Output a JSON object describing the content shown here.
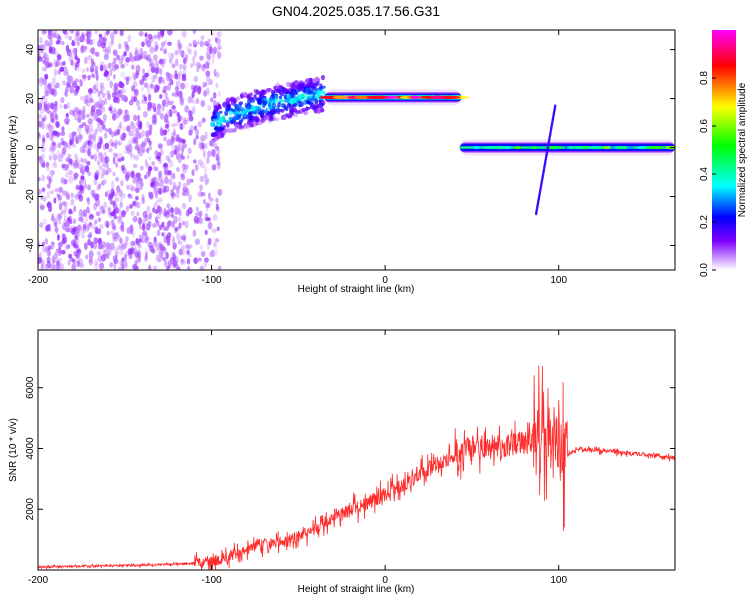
{
  "figure_title": "GN04.2025.035.17.56.G31",
  "chart_data": [
    {
      "type": "heatmap",
      "xlabel": "Height of straight line (km)",
      "ylabel": "Frequency (Hz)",
      "xlim": [
        -200,
        167
      ],
      "ylim": [
        -50,
        48
      ],
      "x_ticks": [
        -200,
        -100,
        0,
        100
      ],
      "y_ticks": [
        -40,
        -20,
        0,
        20,
        40
      ],
      "colorbar": {
        "label": "Normalized spectral amplitude",
        "range": [
          0,
          1
        ],
        "ticks": [
          0.0,
          0.2,
          0.4,
          0.6,
          0.8
        ],
        "colormap": [
          "#ffffff",
          "#8000ff",
          "#0000ff",
          "#00ffff",
          "#00ff00",
          "#ffff00",
          "#ff0000",
          "#ff00ff"
        ]
      },
      "features": [
        {
          "name": "noise",
          "x_range": [
            -200,
            -95
          ],
          "y_range": [
            -50,
            48
          ],
          "amplitude": 0.1
        },
        {
          "name": "ramp",
          "x_range": [
            -100,
            -35
          ],
          "y_start": 7,
          "y_end": 22,
          "amplitude": 0.35
        },
        {
          "name": "line-1",
          "x_range": [
            -35,
            44
          ],
          "y": 20.5,
          "amplitude": 0.85
        },
        {
          "name": "line-2",
          "x_range": [
            43,
            167
          ],
          "y": 0,
          "amplitude": 0.5
        },
        {
          "name": "streak",
          "x_range": [
            87,
            98
          ],
          "y_start": -27,
          "y_end": 17,
          "amplitude": 0.2
        }
      ]
    },
    {
      "type": "line",
      "xlabel": "Height of straight line (km)",
      "ylabel": "SNR (10 * v/v)",
      "xlim": [
        -200,
        167
      ],
      "ylim": [
        0,
        7900
      ],
      "x_ticks": [
        -200,
        -100,
        0,
        100
      ],
      "y_ticks": [
        2000,
        4000,
        6000
      ],
      "line_color": "#ff2a2a",
      "x": [
        -200,
        -150,
        -120,
        -100,
        -90,
        -75,
        -60,
        -45,
        -30,
        -20,
        -10,
        0,
        10,
        20,
        30,
        40,
        50,
        60,
        70,
        80,
        90,
        95,
        100,
        103,
        110,
        130,
        150,
        167
      ],
      "values": [
        100,
        150,
        200,
        250,
        450,
        800,
        900,
        1200,
        1700,
        2000,
        2200,
        2500,
        2800,
        3200,
        3500,
        3800,
        4000,
        4100,
        4100,
        4200,
        4300,
        4500,
        4200,
        3700,
        4000,
        3900,
        3800,
        3700
      ]
    }
  ]
}
